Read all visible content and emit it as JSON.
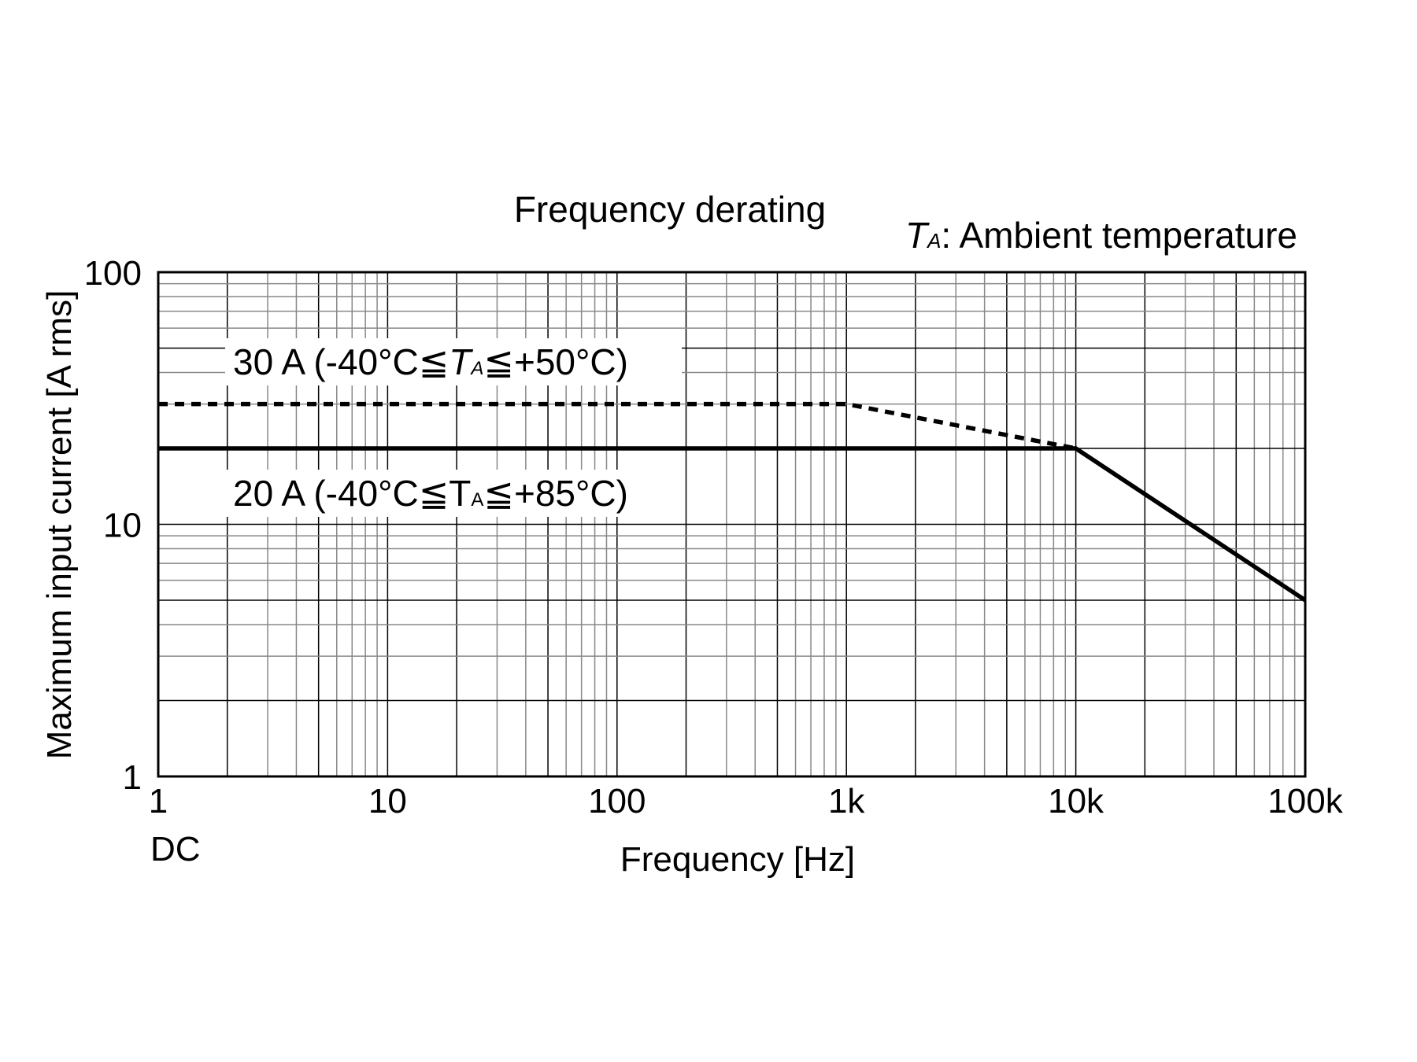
{
  "chart_data": {
    "type": "line",
    "title": "Frequency derating",
    "note": {
      "symbol": "T",
      "subscript": "A",
      "text": ": Ambient temperature"
    },
    "xlabel": "Frequency [Hz]",
    "ylabel": "Maximum input current [A rms]",
    "x_scale": "log",
    "y_scale": "log",
    "xlim": [
      1,
      100000
    ],
    "ylim": [
      1,
      100
    ],
    "x_ticks": [
      1,
      10,
      100,
      1000,
      10000,
      100000
    ],
    "x_tick_labels": [
      "1",
      "10",
      "100",
      "1k",
      "10k",
      "100k"
    ],
    "x_extra_label": "DC",
    "y_ticks": [
      1,
      10,
      100
    ],
    "y_tick_labels": [
      "1",
      "10",
      "100"
    ],
    "grid": true,
    "series": [
      {
        "name": "30 A (-40°C≦TA≦+50°C)",
        "style": "dashed",
        "color": "#000000",
        "label": {
          "pre": "30 A (-40°C≦",
          "sym": "T",
          "sub": "A",
          "post": "≦+50°C)"
        },
        "x": [
          1,
          1000,
          10000
        ],
        "y": [
          30,
          30,
          20
        ]
      },
      {
        "name": "20 A (-40°C≦TA≦+85°C)",
        "style": "solid",
        "color": "#000000",
        "label": {
          "pre": "20 A (-40°C≦",
          "sym": "T",
          "sub": "A",
          "post": "≦+85°C)"
        },
        "x": [
          1,
          10000,
          100000
        ],
        "y": [
          20,
          20,
          5
        ]
      }
    ]
  }
}
